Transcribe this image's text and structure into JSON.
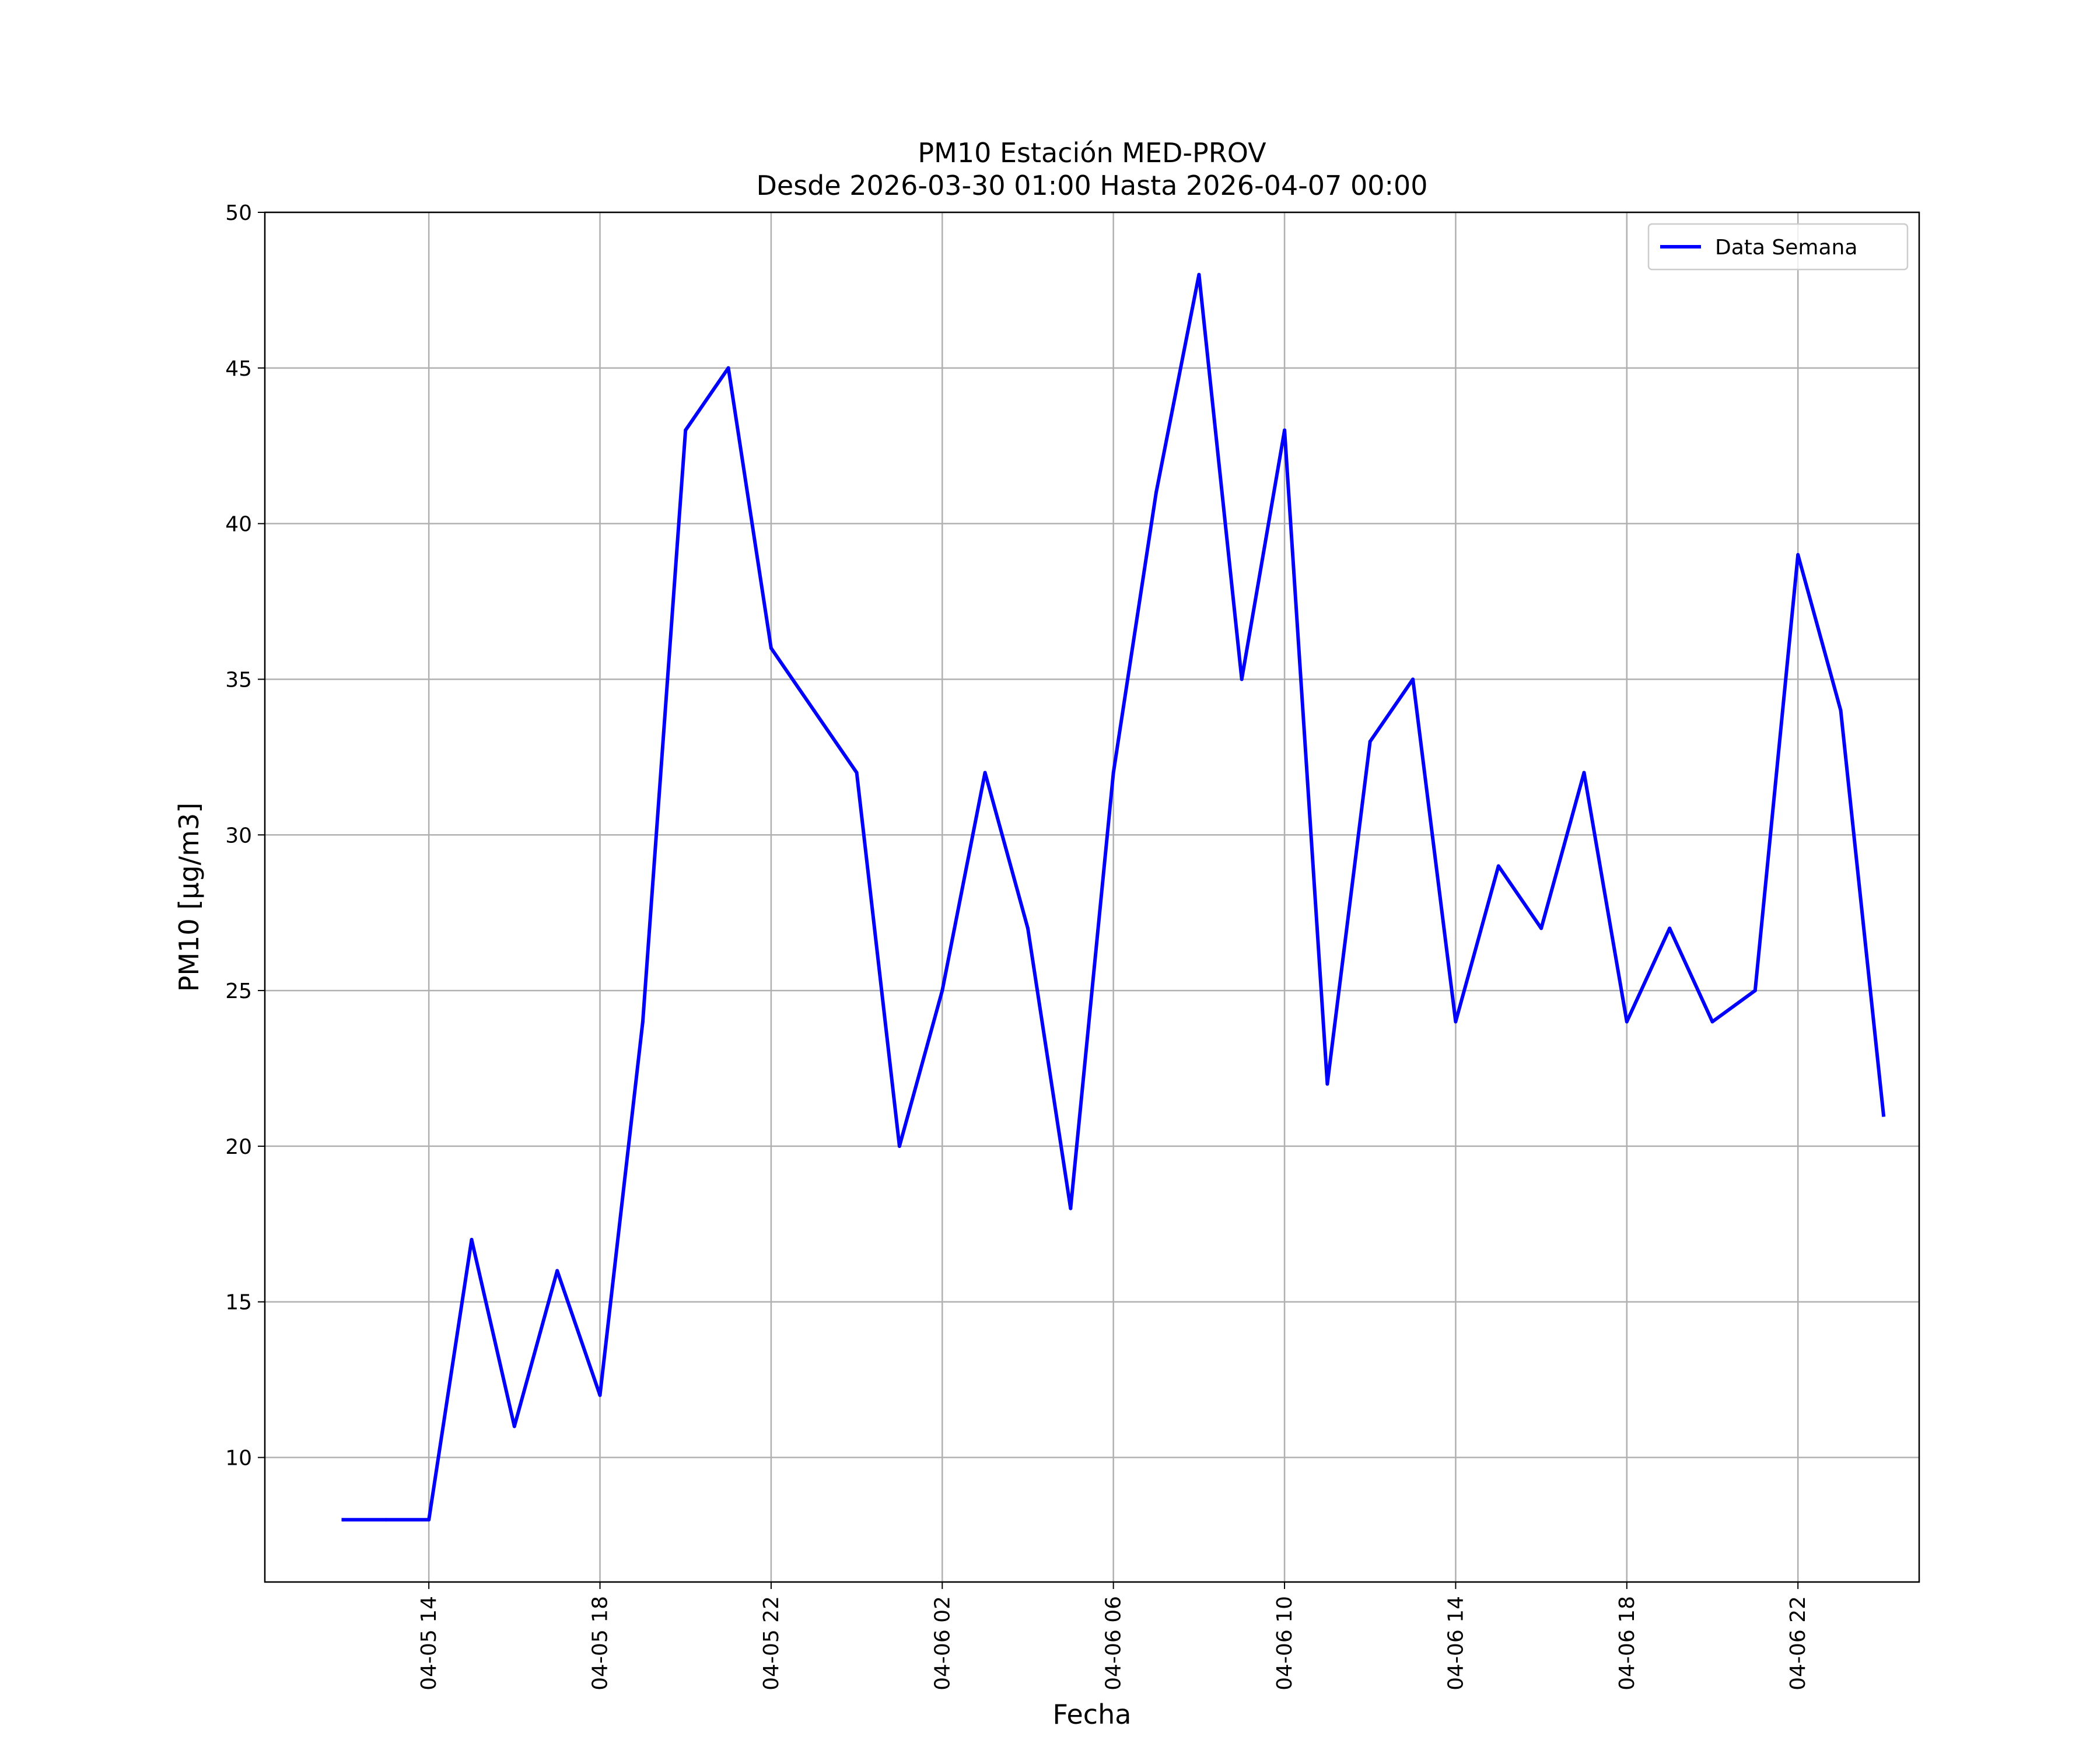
{
  "chart_data": {
    "type": "line",
    "title_line1": "PM10 Estación MED-PROV",
    "title_line2": "Desde 2026-03-30 01:00 Hasta 2026-04-07 00:00",
    "xlabel": "Fecha",
    "ylabel": "PM10 [μg/m3]",
    "ylim": [
      6,
      50
    ],
    "xlim": [
      "2026-04-05 10:10",
      "2026-04-07 00:50"
    ],
    "grid": true,
    "legend_position": "top-right",
    "x_ticks": [
      "04-05 14",
      "04-05 18",
      "04-05 22",
      "04-06 02",
      "04-06 06",
      "04-06 10",
      "04-06 14",
      "04-06 18",
      "04-06 22"
    ],
    "y_ticks": [
      10,
      15,
      20,
      25,
      30,
      35,
      40,
      45,
      50
    ],
    "series": [
      {
        "name": "Data Semana",
        "color": "#0000ff",
        "x": [
          "2026-04-05 12:00",
          "2026-04-05 13:00",
          "2026-04-05 14:00",
          "2026-04-05 15:00",
          "2026-04-05 16:00",
          "2026-04-05 17:00",
          "2026-04-05 18:00",
          "2026-04-05 19:00",
          "2026-04-05 20:00",
          "2026-04-05 21:00",
          "2026-04-05 22:00",
          "2026-04-05 23:00",
          "2026-04-06 00:00",
          "2026-04-06 01:00",
          "2026-04-06 02:00",
          "2026-04-06 03:00",
          "2026-04-06 04:00",
          "2026-04-06 05:00",
          "2026-04-06 06:00",
          "2026-04-06 07:00",
          "2026-04-06 08:00",
          "2026-04-06 09:00",
          "2026-04-06 10:00",
          "2026-04-06 11:00",
          "2026-04-06 12:00",
          "2026-04-06 13:00",
          "2026-04-06 14:00",
          "2026-04-06 15:00",
          "2026-04-06 16:00",
          "2026-04-06 17:00",
          "2026-04-06 18:00",
          "2026-04-06 19:00",
          "2026-04-06 20:00",
          "2026-04-06 21:00",
          "2026-04-06 22:00",
          "2026-04-06 23:00",
          "2026-04-07 00:00"
        ],
        "y": [
          8,
          8,
          8,
          17,
          11,
          16,
          12,
          24,
          43,
          45,
          36,
          34,
          32,
          20,
          25,
          32,
          27,
          18,
          32,
          41,
          48,
          35,
          43,
          22,
          33,
          35,
          24,
          29,
          27,
          32,
          24,
          27,
          24,
          25,
          39,
          34,
          21
        ]
      }
    ]
  }
}
